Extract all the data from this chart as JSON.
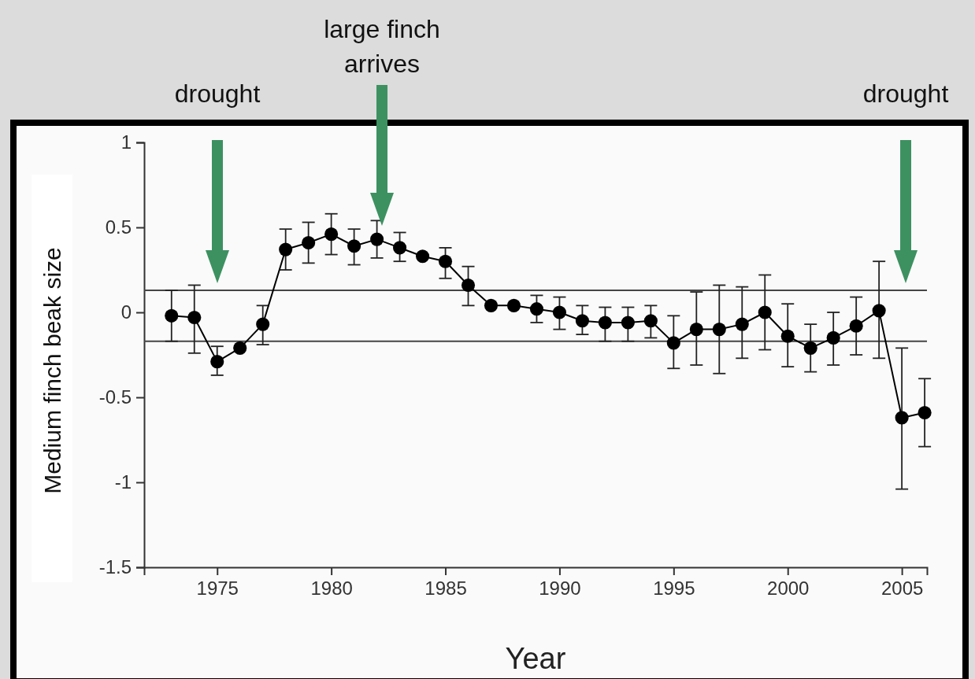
{
  "chart_data": {
    "type": "line",
    "xlabel": "Year",
    "ylabel": "Medium finch beak size",
    "x": [
      1973,
      1974,
      1975,
      1976,
      1977,
      1978,
      1979,
      1980,
      1981,
      1982,
      1983,
      1984,
      1985,
      1986,
      1987,
      1988,
      1989,
      1990,
      1991,
      1992,
      1993,
      1994,
      1995,
      1996,
      1997,
      1998,
      1999,
      2000,
      2001,
      2002,
      2003,
      2004,
      2005,
      2006
    ],
    "series": [
      {
        "color": "#000000",
        "values": [
          -0.02,
          -0.03,
          -0.29,
          -0.21,
          -0.07,
          0.37,
          0.41,
          0.46,
          0.39,
          0.43,
          0.38,
          0.33,
          0.3,
          0.16,
          0.04,
          0.04,
          0.02,
          0,
          -0.05,
          -0.06,
          -0.06,
          -0.05,
          -0.18,
          -0.1,
          -0.1,
          -0.07,
          0,
          -0.14,
          -0.21,
          -0.15,
          -0.08,
          0.01,
          -0.62,
          -0.59
        ],
        "errors": [
          [
            -0.17,
            0.13
          ],
          [
            -0.24,
            0.16
          ],
          [
            -0.37,
            -0.2
          ],
          null,
          [
            -0.19,
            0.04
          ],
          [
            0.25,
            0.49
          ],
          [
            0.29,
            0.53
          ],
          [
            0.34,
            0.58
          ],
          [
            0.28,
            0.49
          ],
          [
            0.32,
            0.54
          ],
          [
            0.3,
            0.47
          ],
          null,
          [
            0.2,
            0.38
          ],
          [
            0.04,
            0.27
          ],
          null,
          null,
          [
            -0.06,
            0.1
          ],
          [
            -0.1,
            0.09
          ],
          [
            -0.13,
            0.04
          ],
          [
            -0.17,
            0.03
          ],
          [
            -0.17,
            0.03
          ],
          [
            -0.15,
            0.04
          ],
          [
            -0.33,
            -0.02
          ],
          [
            -0.31,
            0.12
          ],
          [
            -0.36,
            0.16
          ],
          [
            -0.27,
            0.15
          ],
          [
            -0.22,
            0.22
          ],
          [
            -0.32,
            0.05
          ],
          [
            -0.35,
            -0.07
          ],
          [
            -0.31,
            0
          ],
          [
            -0.25,
            0.09
          ],
          [
            -0.27,
            0.3
          ],
          [
            -1.04,
            -0.21
          ],
          [
            -0.79,
            -0.39
          ]
        ]
      }
    ],
    "xlim": [
      1971.8,
      2006.1
    ],
    "xticks": [
      1975,
      1980,
      1985,
      1990,
      1995,
      2000,
      2005
    ],
    "ylim": [
      -1.5,
      1
    ],
    "yticks": [
      -1.5,
      -1,
      -0.5,
      0,
      0.5,
      1
    ],
    "ref_lines": [
      {
        "axis": "y",
        "value": 0.13,
        "color": "#444444"
      },
      {
        "axis": "y",
        "value": -0.17,
        "color": "#444444"
      }
    ],
    "annotations": [
      "drought",
      "large finch\narrives",
      "drought"
    ],
    "marker": "circle",
    "line_style": "solid"
  }
}
